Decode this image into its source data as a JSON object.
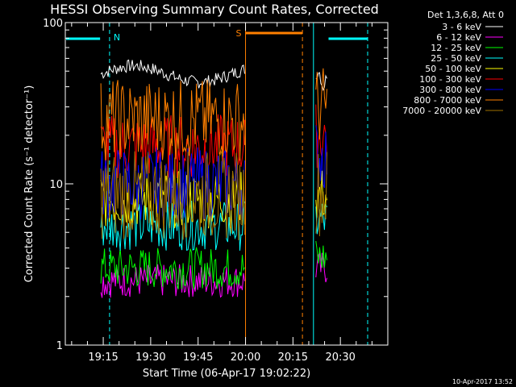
{
  "chart_data": {
    "type": "line",
    "title": "HESSI Observing Summary Count Rates, Corrected",
    "xlabel": "Start Time (06-Apr-17 19:02:22)",
    "ylabel": "Corrected Count Rate (s⁻¹ detector⁻¹)",
    "yscale": "log",
    "ylim": [
      1,
      100
    ],
    "xlim": [
      "19:03",
      "20:45"
    ],
    "x_ticks": [
      "19:15",
      "19:30",
      "19:45",
      "20:00",
      "20:15",
      "20:30"
    ],
    "y_ticks": [
      "1",
      "10",
      "100"
    ],
    "grid": false,
    "legend_title": "Det 1,3,6,8, Att 0",
    "legend_position": "right",
    "series": [
      {
        "name": "3 - 6 keV",
        "color": "#ffffff",
        "levels": [
          48,
          45
        ]
      },
      {
        "name": "6 - 12 keV",
        "color": "#ff00ff",
        "levels": [
          2.5,
          3.0
        ]
      },
      {
        "name": "12 - 25 keV",
        "color": "#00ff00",
        "levels": [
          3.0,
          3.5
        ]
      },
      {
        "name": "25 - 50 keV",
        "color": "#00ffff",
        "levels": [
          5.5,
          6.0
        ]
      },
      {
        "name": "50 - 100 keV",
        "color": "#ffff00",
        "levels": [
          8.0,
          8.5
        ]
      },
      {
        "name": "100 - 300 keV",
        "color": "#ff0000",
        "levels": [
          17,
          20
        ]
      },
      {
        "name": "300 - 800 keV",
        "color": "#0000ff",
        "levels": [
          10,
          15
        ]
      },
      {
        "name": "800 - 7000 keV",
        "color": "#ff8000",
        "levels": [
          25,
          30
        ]
      },
      {
        "name": "7000 - 20000 keV",
        "color": "#a07000",
        "levels": [
          8.5,
          9.0
        ]
      }
    ],
    "data_intervals": [
      [
        "19:14",
        "20:00"
      ],
      [
        "20:22",
        "20:26"
      ]
    ],
    "night_markers": [
      {
        "label": "N",
        "start": "19:14",
        "end": "19:17"
      }
    ],
    "saa_markers": [
      {
        "label": "S",
        "start": "20:00",
        "end": "20:18"
      }
    ],
    "timestamp": "10-Apr-2017 13:52"
  }
}
